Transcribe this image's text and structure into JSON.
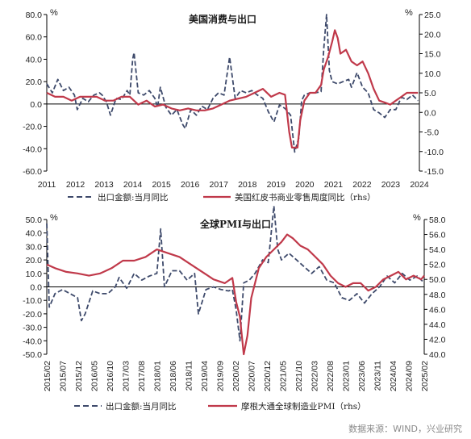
{
  "colors": {
    "dashed": "#3e4a6b",
    "solid": "#c0394a",
    "axis": "#000000"
  },
  "source": "数据来源：WIND，兴业研究",
  "chart_data": [
    {
      "type": "line",
      "title": "美国消费与出口",
      "x_range": [
        2011.0,
        2024.45
      ],
      "x_ticks": [
        "2011",
        "2012",
        "2013",
        "2014",
        "2015",
        "2016",
        "2017",
        "2018",
        "2019",
        "2020",
        "2021",
        "2022",
        "2023",
        "2024"
      ],
      "left_axis": {
        "unit": "%",
        "range": [
          -60,
          80
        ],
        "ticks": [
          "80.0",
          "60.0",
          "40.0",
          "20.0",
          "0.0",
          "-20.0",
          "-40.0",
          "-60.0"
        ]
      },
      "right_axis": {
        "unit": "%",
        "range": [
          -15,
          25
        ],
        "ticks": [
          "25.0",
          "20.0",
          "15.0",
          "10.0",
          "5.0",
          "0.0",
          "-5.0",
          "-10.0",
          "-15.0"
        ]
      },
      "series": [
        {
          "name": "出口金额:当月同比",
          "axis": "left",
          "style": "dashed",
          "x": [
            2011.0,
            2011.2,
            2011.4,
            2011.6,
            2011.8,
            2012.0,
            2012.1,
            2012.3,
            2012.5,
            2012.7,
            2012.9,
            2013.0,
            2013.15,
            2013.3,
            2013.5,
            2013.7,
            2013.9,
            2014.0,
            2014.1,
            2014.15,
            2014.3,
            2014.5,
            2014.7,
            2014.9,
            2015.0,
            2015.1,
            2015.3,
            2015.5,
            2015.7,
            2015.9,
            2016.0,
            2016.2,
            2016.4,
            2016.6,
            2016.8,
            2017.0,
            2017.2,
            2017.4,
            2017.6,
            2017.8,
            2018.0,
            2018.2,
            2018.4,
            2018.6,
            2018.8,
            2019.0,
            2019.2,
            2019.4,
            2019.6,
            2019.8,
            2019.95,
            2020.1,
            2020.2,
            2020.3,
            2020.5,
            2020.7,
            2020.9,
            2021.0,
            2021.1,
            2021.2,
            2021.3,
            2021.5,
            2021.7,
            2021.9,
            2022.0,
            2022.2,
            2022.4,
            2022.6,
            2022.8,
            2023.0,
            2023.2,
            2023.4,
            2023.6,
            2023.8,
            2024.0,
            2024.2,
            2024.4
          ],
          "y": [
            18,
            10,
            22,
            12,
            15,
            8,
            -5,
            5,
            2,
            8,
            10,
            8,
            2,
            -10,
            5,
            4,
            12,
            8,
            40,
            46,
            10,
            8,
            12,
            5,
            -3,
            15,
            -3,
            -10,
            -5,
            -18,
            -22,
            -5,
            -10,
            -2,
            -5,
            5,
            10,
            8,
            42,
            5,
            12,
            10,
            12,
            8,
            5,
            -7,
            -16,
            -1,
            -4,
            -10,
            -43,
            -30,
            3,
            8,
            10,
            10,
            11,
            50,
            80,
            30,
            20,
            18,
            20,
            22,
            15,
            28,
            15,
            10,
            -5,
            -8,
            -12,
            -5,
            -5,
            6,
            4,
            8,
            3
          ]
        },
        {
          "name": "美国红皮书商业零售周度同比（rhs）",
          "axis": "right",
          "style": "solid",
          "x": [
            2011.0,
            2011.3,
            2011.6,
            2011.9,
            2012.2,
            2012.5,
            2012.8,
            2013.1,
            2013.4,
            2013.7,
            2014.0,
            2014.3,
            2014.6,
            2014.9,
            2015.2,
            2015.5,
            2015.8,
            2016.1,
            2016.4,
            2016.7,
            2017.0,
            2017.3,
            2017.6,
            2017.9,
            2018.2,
            2018.5,
            2018.8,
            2019.1,
            2019.4,
            2019.6,
            2019.75,
            2019.85,
            2019.95,
            2020.05,
            2020.15,
            2020.3,
            2020.5,
            2020.7,
            2020.9,
            2021.0,
            2021.15,
            2021.3,
            2021.4,
            2021.5,
            2021.6,
            2021.8,
            2022.0,
            2022.2,
            2022.4,
            2022.6,
            2022.8,
            2023.0,
            2023.2,
            2023.4,
            2023.6,
            2023.8,
            2024.0,
            2024.2,
            2024.4
          ],
          "y": [
            5,
            4,
            4,
            3,
            4,
            4,
            4,
            3,
            3,
            4,
            4,
            2,
            3,
            1.5,
            2,
            1,
            0.5,
            1,
            0.5,
            0.5,
            1,
            2,
            3,
            3.5,
            4,
            5,
            6,
            4,
            5,
            4.5,
            -5,
            -9,
            -9,
            -9,
            -2,
            3,
            5,
            5,
            7,
            11,
            14,
            18,
            21,
            19,
            15,
            16,
            13,
            12,
            13,
            10,
            6,
            3,
            2.5,
            2,
            3,
            4,
            5,
            5,
            5
          ]
        }
      ]
    },
    {
      "type": "line",
      "title": "全球PMI与出口",
      "x_range": [
        2015.083,
        2025.083
      ],
      "x_ticks": [
        "2015/02",
        "2015/07",
        "2015/12",
        "2016/05",
        "2016/10",
        "2017/03",
        "2017/08",
        "2018/01",
        "2018/06",
        "2018/11",
        "2019/04",
        "2019/09",
        "2020/02",
        "2020/07",
        "2020/12",
        "2021/05",
        "2021/10",
        "2022/03",
        "2022/08",
        "2023/01",
        "2023/06",
        "2023/11",
        "2024/04",
        "2024/09",
        "2025/02"
      ],
      "left_axis": {
        "unit": "%",
        "range": [
          -50,
          50
        ],
        "ticks": [
          "50.0",
          "40.0",
          "30.0",
          "20.0",
          "10.0",
          "0.0",
          "-10.0",
          "-20.0",
          "-30.0",
          "-40.0",
          "-50.0"
        ]
      },
      "right_axis": {
        "unit": "%",
        "range": [
          40,
          58
        ],
        "ticks": [
          "58.0",
          "56.0",
          "54.0",
          "52.0",
          "50.0",
          "48.0",
          "46.0",
          "44.0",
          "42.0",
          "40.0"
        ]
      },
      "series": [
        {
          "name": "出口金额:当月同比",
          "axis": "left",
          "style": "dashed",
          "x": [
            2015.083,
            2015.15,
            2015.3,
            2015.5,
            2015.7,
            2015.9,
            2016.0,
            2016.1,
            2016.3,
            2016.5,
            2016.7,
            2016.9,
            2017.0,
            2017.2,
            2017.4,
            2017.6,
            2017.8,
            2018.0,
            2018.1,
            2018.2,
            2018.4,
            2018.6,
            2018.8,
            2019.0,
            2019.1,
            2019.3,
            2019.5,
            2019.7,
            2019.9,
            2020.0,
            2020.1,
            2020.2,
            2020.3,
            2020.45,
            2020.6,
            2020.8,
            2020.95,
            2021.1,
            2021.2,
            2021.3,
            2021.5,
            2021.7,
            2021.9,
            2022.1,
            2022.3,
            2022.5,
            2022.7,
            2022.9,
            2023.1,
            2023.3,
            2023.5,
            2023.7,
            2023.9,
            2024.1,
            2024.3,
            2024.5,
            2024.7,
            2024.9,
            2025.083
          ],
          "y": [
            47,
            -15,
            -5,
            -2,
            -5,
            -8,
            -25,
            -20,
            -3,
            -5,
            -5,
            0,
            7,
            -1,
            10,
            5,
            8,
            10,
            43,
            0,
            12,
            12,
            5,
            10,
            -20,
            -2,
            0,
            -2,
            -3,
            -2,
            -17,
            -40,
            3,
            5,
            10,
            20,
            18,
            60,
            28,
            20,
            25,
            20,
            15,
            10,
            15,
            5,
            3,
            -8,
            -10,
            -5,
            -12,
            -5,
            0,
            8,
            3,
            10,
            5,
            8,
            3
          ]
        },
        {
          "name": "摩根大通全球制造业PMI（rhs）",
          "axis": "right",
          "style": "solid",
          "x": [
            2015.083,
            2015.3,
            2015.6,
            2015.9,
            2016.2,
            2016.5,
            2016.8,
            2017.1,
            2017.4,
            2017.7,
            2018.0,
            2018.3,
            2018.6,
            2018.9,
            2019.2,
            2019.5,
            2019.8,
            2020.0,
            2020.1,
            2020.2,
            2020.3,
            2020.4,
            2020.5,
            2020.7,
            2020.9,
            2021.1,
            2021.3,
            2021.45,
            2021.6,
            2021.8,
            2022.0,
            2022.2,
            2022.4,
            2022.6,
            2022.8,
            2023.0,
            2023.2,
            2023.4,
            2023.6,
            2023.8,
            2024.0,
            2024.2,
            2024.4,
            2024.6,
            2024.8,
            2025.0,
            2025.083
          ],
          "y": [
            52,
            51.5,
            51,
            50.8,
            50.5,
            50.8,
            51.5,
            52.5,
            52.5,
            53,
            54,
            53.5,
            53,
            52,
            51,
            50,
            49.5,
            50.2,
            47,
            45,
            40,
            42.5,
            47.5,
            51.5,
            53,
            54,
            55,
            56,
            55.5,
            54.5,
            54,
            53,
            52,
            50.5,
            49.5,
            49,
            49.5,
            49.5,
            48.5,
            49,
            50,
            50.5,
            51,
            50,
            50.5,
            50,
            50.5
          ]
        }
      ]
    }
  ]
}
